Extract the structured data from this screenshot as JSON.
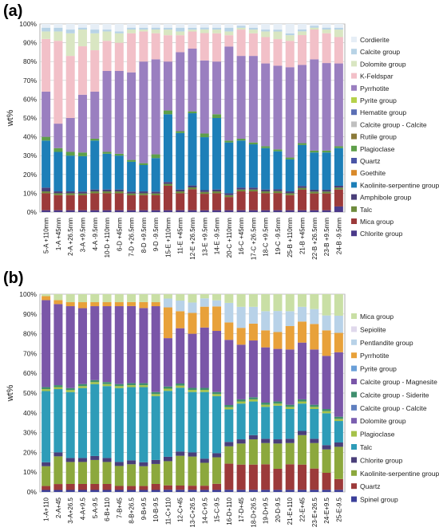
{
  "chart_data": [
    {
      "panel_label": "(a)",
      "type": "bar",
      "stacked": true,
      "ylabel": "wt%",
      "ylim": [
        0,
        100
      ],
      "yticks": [
        "0%",
        "10%",
        "20%",
        "30%",
        "40%",
        "50%",
        "60%",
        "70%",
        "80%",
        "90%",
        "100%"
      ],
      "grid": true,
      "legend_position": "right",
      "categories": [
        "5-A +110mm",
        "1-A +45mm",
        "2-A +26.5mm",
        "3-A +9.5mm",
        "4-A -9.5mm",
        "10-D +110mm",
        "6-D +45mm",
        "7-D +26.5mm",
        "8-D +9.5mm",
        "9-D -9.5mm",
        "15-E +110mm",
        "11-E +45mm",
        "12-E +26.5mm",
        "13-E +9.5mm",
        "14-E -9.5mm",
        "20-C +110mm",
        "16-C +45mm",
        "17-C +26.5mm",
        "18-C +9.5mm",
        "19-C -9.5mm",
        "25-B +110mm",
        "21-B +45mm",
        "22-B +26.5mm",
        "23-B +9.5mm",
        "24-B -9.5mm"
      ],
      "series": [
        {
          "name": "Chlorite group",
          "color": "#4b3a8a",
          "values": [
            1,
            1,
            1,
            1,
            1,
            1,
            1,
            1,
            1,
            1,
            1,
            1,
            1,
            1,
            1,
            1,
            1,
            1,
            1,
            1,
            1,
            1,
            1,
            1,
            3
          ]
        },
        {
          "name": "Mica group",
          "color": "#9c3a3a",
          "values": [
            9,
            8,
            8,
            8,
            9,
            9,
            9,
            8,
            8,
            8,
            13,
            9,
            11,
            9,
            9,
            7,
            10,
            10,
            9,
            9,
            8,
            11,
            9,
            9,
            9
          ]
        },
        {
          "name": "Talc",
          "color": "#6e8b3d",
          "values": [
            1,
            1,
            1,
            1,
            1,
            1,
            1,
            1,
            1,
            1,
            1,
            1,
            1,
            1,
            1,
            1,
            1,
            1,
            1,
            1,
            1,
            1,
            1,
            1,
            1
          ]
        },
        {
          "name": "Amphibole group",
          "color": "#4a3f7a",
          "values": [
            2,
            1,
            1,
            1,
            1,
            1,
            1,
            1,
            1,
            1,
            1,
            1,
            1,
            1,
            1,
            1,
            1,
            1,
            1,
            1,
            1,
            1,
            1,
            1,
            1
          ]
        },
        {
          "name": "Kaolinite-serpentine group",
          "color": "#1d7fb8",
          "values": [
            25,
            21,
            19,
            19,
            26,
            19,
            18,
            16,
            14,
            18,
            36,
            30,
            38,
            29,
            38,
            27,
            25,
            23,
            22,
            20,
            17,
            22,
            20,
            20,
            20
          ]
        },
        {
          "name": "Goethite",
          "color": "#d98a2b",
          "values": [
            0,
            0,
            0,
            0,
            0,
            0,
            0,
            0,
            0,
            0,
            0,
            0,
            0,
            0,
            0,
            0,
            0,
            0,
            0,
            0,
            0,
            0,
            0,
            0,
            0
          ]
        },
        {
          "name": "Quartz",
          "color": "#4a55a6",
          "values": [
            0,
            0,
            0,
            0,
            0,
            0,
            0,
            0,
            0,
            0,
            0,
            0,
            0,
            0,
            0,
            0,
            0,
            0,
            0,
            0,
            0,
            0,
            0,
            0,
            0
          ]
        },
        {
          "name": "Plagioclase",
          "color": "#5e9f4a",
          "values": [
            2,
            2,
            2,
            2,
            1,
            1,
            1,
            1,
            1,
            2,
            2,
            1,
            1,
            2,
            2,
            1,
            1,
            1,
            1,
            1,
            1,
            1,
            1,
            1,
            1
          ]
        },
        {
          "name": "Rutile group",
          "color": "#8b7a3a",
          "values": [
            0,
            0,
            0,
            0,
            0,
            0,
            0,
            0,
            0,
            0,
            0,
            0,
            0,
            0,
            0,
            0,
            0,
            0,
            0,
            0,
            0,
            0,
            0,
            0,
            0
          ]
        },
        {
          "name": "Calcite group - Calcite",
          "color": "#c0c0c0",
          "values": [
            0,
            0,
            0,
            0,
            0,
            0,
            0,
            0,
            0,
            0,
            0,
            0,
            0,
            0,
            0,
            0,
            0,
            0,
            0,
            0,
            0,
            0,
            0,
            0,
            0
          ]
        },
        {
          "name": "Hematite group",
          "color": "#5b6fb5",
          "values": [
            0,
            0,
            0,
            0,
            0,
            0,
            0,
            0,
            0,
            0,
            0,
            0,
            0,
            0,
            0,
            0,
            0,
            0,
            0,
            0,
            0,
            0,
            0,
            0,
            0
          ]
        },
        {
          "name": "Pyrite group",
          "color": "#b5d14a",
          "values": [
            0,
            0,
            0,
            0,
            0,
            0,
            0,
            0,
            0,
            0,
            0,
            0,
            0,
            0,
            0,
            0,
            0,
            0,
            0,
            0,
            0,
            0,
            0,
            0,
            0
          ]
        },
        {
          "name": "Pyrrhotite",
          "color": "#9a7fc0",
          "values": [
            24,
            13,
            18,
            31,
            25,
            43,
            44,
            47,
            54,
            51,
            26,
            42,
            33,
            40,
            28,
            50,
            44,
            46,
            44,
            44,
            48,
            42,
            49,
            47,
            44
          ]
        },
        {
          "name": "K-Feldspar",
          "color": "#f2c0c8",
          "values": [
            28,
            44,
            33,
            26,
            22,
            16,
            15,
            21,
            16,
            14,
            14,
            9,
            9,
            15,
            15,
            6,
            14,
            12,
            14,
            14,
            14,
            16,
            16,
            16,
            14
          ]
        },
        {
          "name": "Dolomite group",
          "color": "#d9e6c2",
          "values": [
            4,
            5,
            12,
            9,
            9,
            5,
            5,
            2,
            1,
            2,
            3,
            2,
            1,
            2,
            2,
            2,
            1,
            2,
            3,
            4,
            3,
            2,
            1,
            2,
            4
          ]
        },
        {
          "name": "Calcite group",
          "color": "#b8d3e6",
          "values": [
            2,
            2,
            2,
            1,
            2,
            1,
            1,
            1,
            1,
            1,
            1,
            2,
            1,
            1,
            1,
            2,
            1,
            1,
            1,
            1,
            1,
            1,
            1,
            1,
            1
          ]
        },
        {
          "name": "Cordierite",
          "color": "#e6eef6",
          "values": [
            2,
            2,
            3,
            2,
            3,
            3,
            4,
            2,
            2,
            2,
            2,
            2,
            2,
            2,
            2,
            2,
            1,
            2,
            3,
            3,
            5,
            3,
            1,
            2,
            2
          ]
        }
      ]
    },
    {
      "panel_label": "(b)",
      "type": "bar",
      "stacked": true,
      "ylabel": "wt%",
      "ylim": [
        0,
        100
      ],
      "yticks": [
        "0%",
        "10%",
        "20%",
        "30%",
        "40%",
        "50%",
        "60%",
        "70%",
        "80%",
        "90%",
        "100%"
      ],
      "grid": true,
      "legend_position": "right",
      "categories": [
        "1-A+110",
        "2-A+45",
        "3-A+26.5",
        "4-A+9.5",
        "5-A-9.5",
        "6-B+110",
        "7-B+45",
        "8-B+26.5",
        "9-B+9.5",
        "10-B-9.5",
        "11-C+110",
        "12-C+45",
        "13-C+26.5",
        "14-C+9.5",
        "15-C-9.5",
        "16-D+110",
        "17-D+45",
        "18-D+26.5",
        "19-D+9.5",
        "20-D-9.5",
        "21-E+110",
        "22-E+45",
        "23-E+26.5",
        "24-E+9.5",
        "25-E-9.5"
      ],
      "series": [
        {
          "name": "Spinel group",
          "color": "#3b3f9a",
          "values": [
            1,
            1,
            1,
            1,
            1,
            1,
            1,
            1,
            1,
            1,
            1,
            1,
            1,
            1,
            1,
            1,
            1,
            1,
            1,
            1,
            1,
            1,
            1,
            1,
            1
          ]
        },
        {
          "name": "Quartz",
          "color": "#9c3a3a",
          "values": [
            2,
            3,
            3,
            3,
            3,
            3,
            2,
            2,
            2,
            3,
            2,
            2,
            2,
            2,
            3,
            12,
            12,
            12,
            12,
            10,
            12,
            12,
            10,
            8,
            5
          ]
        },
        {
          "name": "Kaolinite-serpentine group",
          "color": "#8ca83d",
          "values": [
            10,
            14,
            11,
            11,
            12,
            11,
            10,
            11,
            10,
            10,
            11,
            14,
            14,
            11,
            13,
            8,
            10,
            12,
            10,
            12,
            10,
            14,
            12,
            11,
            15
          ]
        },
        {
          "name": "Chlorite group",
          "color": "#4a3f7a",
          "values": [
            2,
            2,
            2,
            2,
            2,
            2,
            2,
            2,
            2,
            2,
            2,
            2,
            2,
            2,
            2,
            2,
            2,
            2,
            2,
            2,
            2,
            2,
            2,
            2,
            2
          ]
        },
        {
          "name": "Talc",
          "color": "#2e9cb8",
          "values": [
            36,
            32,
            33,
            35,
            36,
            36,
            37,
            37,
            38,
            32,
            30,
            30,
            29,
            32,
            28,
            15,
            17,
            16,
            15,
            16,
            14,
            13,
            14,
            15,
            10
          ]
        },
        {
          "name": "Plagioclase",
          "color": "#a5c24a",
          "values": [
            1,
            1,
            1,
            1,
            1,
            1,
            1,
            1,
            1,
            1,
            1,
            1,
            1,
            1,
            1,
            1,
            1,
            1,
            1,
            1,
            1,
            1,
            1,
            1,
            1
          ]
        },
        {
          "name": "Dolomite group",
          "color": "#7b5fb0",
          "values": [
            0,
            0,
            0,
            0,
            0,
            0,
            0,
            0,
            0,
            0,
            0,
            0,
            0,
            0,
            0,
            0,
            0,
            0,
            0,
            0,
            0,
            0,
            0,
            0,
            0
          ]
        },
        {
          "name": "Calcite group - Calcite",
          "color": "#5f7fbf",
          "values": [
            0,
            0,
            0,
            0,
            0,
            0,
            0,
            0,
            0,
            0,
            0,
            0,
            0,
            0,
            0,
            0,
            0,
            0,
            0,
            0,
            0,
            0,
            0,
            0,
            0
          ]
        },
        {
          "name": "Calcite group - Siderite",
          "color": "#3f8f6e",
          "values": [
            1,
            1,
            1,
            1,
            1,
            1,
            1,
            1,
            1,
            1,
            1,
            1,
            1,
            1,
            1,
            1,
            1,
            1,
            1,
            1,
            1,
            1,
            1,
            1,
            1
          ]
        },
        {
          "name": "Calcite group - Magnesite",
          "color": "#7a56a8",
          "values": [
            44,
            41,
            41,
            38,
            37,
            38,
            39,
            39,
            38,
            43,
            22,
            26,
            26,
            29,
            30,
            30,
            26,
            27,
            26,
            25,
            26,
            27,
            26,
            25,
            30
          ]
        },
        {
          "name": "Pyrite group",
          "color": "#6a9fd8",
          "values": [
            0,
            0,
            0,
            0,
            0,
            0,
            0,
            0,
            0,
            0,
            0,
            0,
            0,
            0,
            0,
            0,
            0,
            0,
            0,
            0,
            0,
            0,
            0,
            0,
            0
          ]
        },
        {
          "name": "Pyrrhotite",
          "color": "#e8a13a",
          "values": [
            2,
            2,
            2,
            3,
            2,
            2,
            2,
            2,
            3,
            2,
            14,
            8,
            10,
            10,
            12,
            8,
            8,
            8,
            8,
            8,
            11,
            10,
            12,
            12,
            9
          ]
        },
        {
          "name": "Pentlandite group",
          "color": "#b8d2e8",
          "values": [
            0,
            0,
            0,
            0,
            0,
            0,
            0,
            0,
            0,
            0,
            4,
            5,
            5,
            4,
            3,
            9,
            10,
            8,
            9,
            10,
            7,
            7,
            7,
            7,
            8
          ]
        },
        {
          "name": "Sepiolite",
          "color": "#e0d9ec",
          "values": [
            0,
            0,
            0,
            0,
            0,
            0,
            0,
            0,
            0,
            0,
            0,
            0,
            0,
            0,
            0,
            0,
            0,
            0,
            0,
            0,
            0,
            0,
            0,
            0,
            0
          ]
        },
        {
          "name": "Mica group",
          "color": "#c9dfa5",
          "values": [
            1,
            3,
            4,
            4,
            4,
            4,
            4,
            4,
            4,
            4,
            2,
            3,
            4,
            2,
            3,
            4,
            6,
            6,
            8,
            8,
            8,
            6,
            7,
            10,
            10
          ]
        }
      ]
    }
  ]
}
